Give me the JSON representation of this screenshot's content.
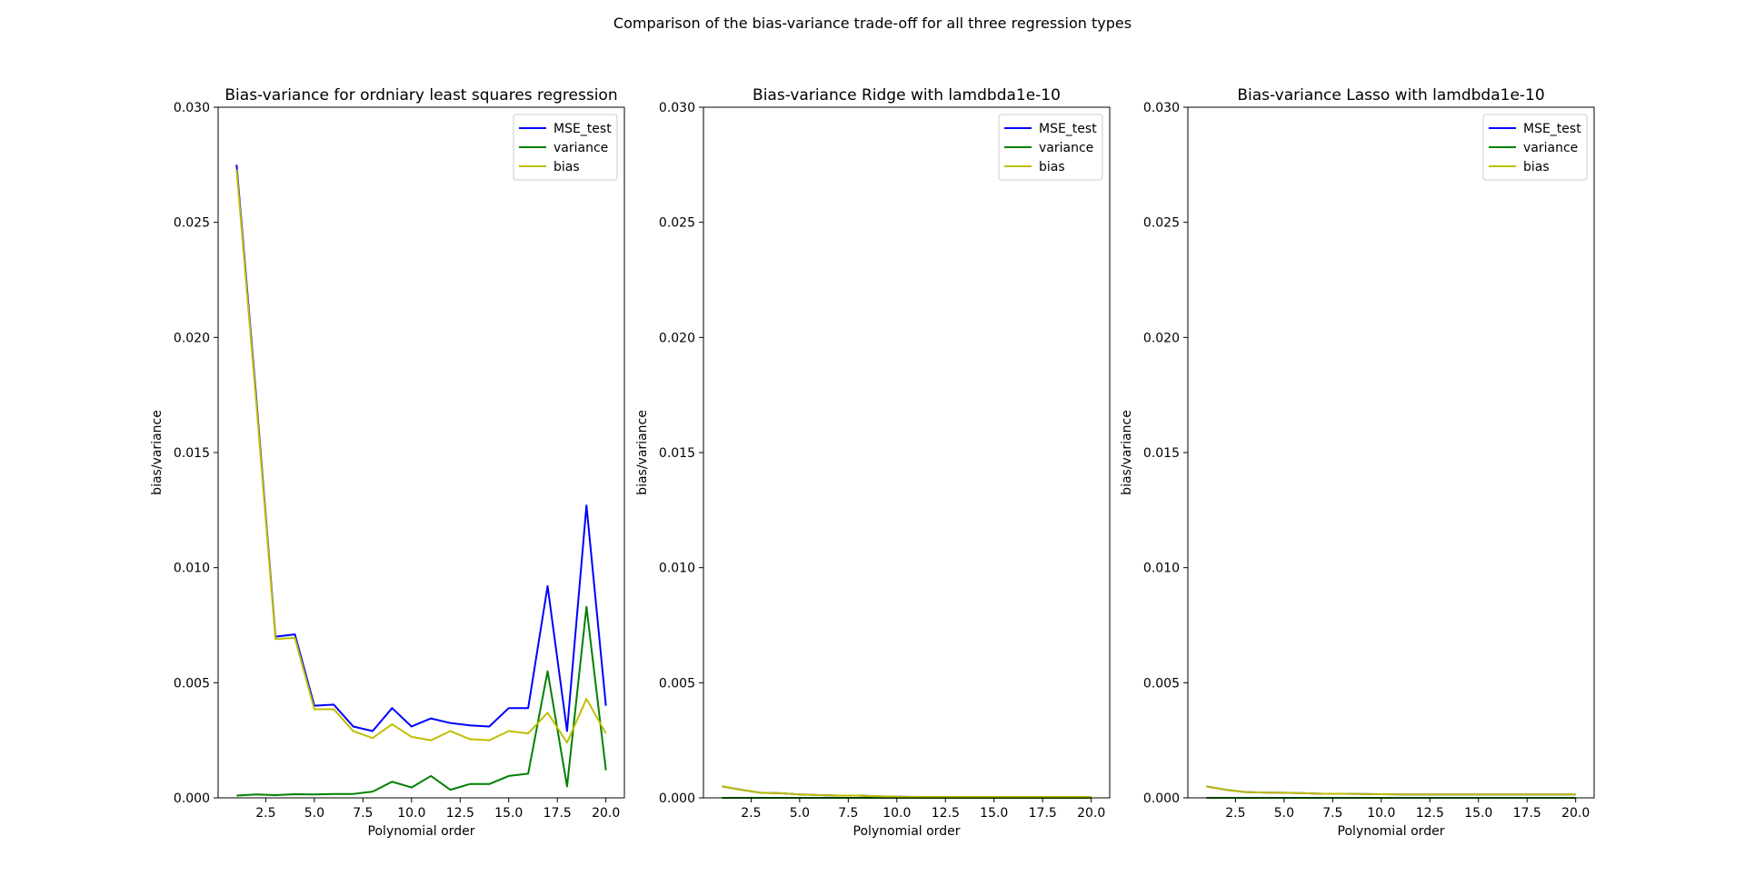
{
  "figure": {
    "suptitle": "Comparison of the bias-variance trade-off for all three regression types"
  },
  "colors": {
    "mse_test": "#0000ff",
    "variance": "#008000",
    "bias": "#bfbf00"
  },
  "chart_data": [
    {
      "type": "line",
      "title": "Bias-variance for ordniary least squares regression",
      "xlabel": "Polynomial order",
      "ylabel": "bias/variance",
      "xlim": [
        0.05,
        20.95
      ],
      "ylim": [
        0,
        0.03
      ],
      "xticks": [
        "2.5",
        "5.0",
        "7.5",
        "10.0",
        "12.5",
        "15.0",
        "17.5",
        "20.0"
      ],
      "yticks": [
        "0.000",
        "0.005",
        "0.010",
        "0.015",
        "0.020",
        "0.025",
        "0.030"
      ],
      "legend_position": "top-right",
      "grid": false,
      "x": [
        1,
        2,
        3,
        4,
        5,
        6,
        7,
        8,
        9,
        10,
        11,
        12,
        13,
        14,
        15,
        16,
        17,
        18,
        19,
        20
      ],
      "series": [
        {
          "name": "MSE_test",
          "color_key": "mse_test",
          "values": [
            0.0275,
            0.0175,
            0.007,
            0.0071,
            0.004,
            0.00405,
            0.0031,
            0.0029,
            0.0039,
            0.0031,
            0.00345,
            0.00325,
            0.00315,
            0.0031,
            0.0039,
            0.0039,
            0.0092,
            0.0029,
            0.0127,
            0.004
          ]
        },
        {
          "name": "variance",
          "color_key": "variance",
          "values": [
            0.0001,
            0.00015,
            0.00012,
            0.00016,
            0.00015,
            0.00017,
            0.00017,
            0.00027,
            0.0007,
            0.00045,
            0.00095,
            0.00035,
            0.0006,
            0.0006,
            0.00095,
            0.00105,
            0.0055,
            0.0005,
            0.0083,
            0.0012
          ]
        },
        {
          "name": "bias",
          "color_key": "bias",
          "values": [
            0.0273,
            0.0173,
            0.0069,
            0.00695,
            0.00385,
            0.00385,
            0.0029,
            0.0026,
            0.0032,
            0.00265,
            0.0025,
            0.0029,
            0.00255,
            0.0025,
            0.0029,
            0.0028,
            0.0037,
            0.0024,
            0.0043,
            0.0028
          ]
        }
      ]
    },
    {
      "type": "line",
      "title": "Bias-variance Ridge with lamdbda1e-10",
      "xlabel": "Polynomial order",
      "ylabel": "bias/variance",
      "xlim": [
        0.05,
        20.95
      ],
      "ylim": [
        0,
        0.03
      ],
      "xticks": [
        "2.5",
        "5.0",
        "7.5",
        "10.0",
        "12.5",
        "15.0",
        "17.5",
        "20.0"
      ],
      "yticks": [
        "0.000",
        "0.005",
        "0.010",
        "0.015",
        "0.020",
        "0.025",
        "0.030"
      ],
      "legend_position": "top-right",
      "grid": false,
      "x": [
        1,
        2,
        3,
        4,
        5,
        6,
        7,
        8,
        9,
        10,
        11,
        12,
        13,
        14,
        15,
        16,
        17,
        18,
        19,
        20
      ],
      "series": [
        {
          "name": "MSE_test",
          "color_key": "mse_test",
          "values": [
            0.0005,
            0.00035,
            0.00022,
            0.0002,
            0.00015,
            0.00012,
            0.0001,
            0.0001,
            7e-05,
            5e-05,
            4e-05,
            4e-05,
            4e-05,
            4e-05,
            4e-05,
            4e-05,
            4e-05,
            4e-05,
            4e-05,
            4e-05
          ]
        },
        {
          "name": "variance",
          "color_key": "variance",
          "values": [
            2e-06,
            2e-06,
            2e-06,
            2e-06,
            2e-06,
            2e-06,
            2e-06,
            2e-06,
            2e-06,
            2e-06,
            2e-06,
            2e-06,
            2e-06,
            2e-06,
            2e-06,
            2e-06,
            2e-06,
            2e-06,
            2e-06,
            2e-06
          ]
        },
        {
          "name": "bias",
          "color_key": "bias",
          "values": [
            0.0005,
            0.00035,
            0.00022,
            0.0002,
            0.00015,
            0.00012,
            0.0001,
            0.0001,
            7e-05,
            5e-05,
            4e-05,
            4e-05,
            4e-05,
            4e-05,
            4e-05,
            4e-05,
            4e-05,
            4e-05,
            4e-05,
            4e-05
          ]
        }
      ]
    },
    {
      "type": "line",
      "title": "Bias-variance Lasso with lamdbda1e-10",
      "xlabel": "Polynomial order",
      "ylabel": "bias/variance",
      "xlim": [
        0.05,
        20.95
      ],
      "ylim": [
        0,
        0.03
      ],
      "xticks": [
        "2.5",
        "5.0",
        "7.5",
        "10.0",
        "12.5",
        "15.0",
        "17.5",
        "20.0"
      ],
      "yticks": [
        "0.000",
        "0.005",
        "0.010",
        "0.015",
        "0.020",
        "0.025",
        "0.030"
      ],
      "legend_position": "top-right",
      "grid": false,
      "x": [
        1,
        2,
        3,
        4,
        5,
        6,
        7,
        8,
        9,
        10,
        11,
        12,
        13,
        14,
        15,
        16,
        17,
        18,
        19,
        20
      ],
      "series": [
        {
          "name": "MSE_test",
          "color_key": "mse_test",
          "values": [
            0.0005,
            0.00035,
            0.00025,
            0.00023,
            0.00022,
            0.0002,
            0.00018,
            0.00018,
            0.00017,
            0.00016,
            0.00015,
            0.00015,
            0.00015,
            0.00015,
            0.00015,
            0.00015,
            0.00015,
            0.00015,
            0.00015,
            0.00015
          ]
        },
        {
          "name": "variance",
          "color_key": "variance",
          "values": [
            2e-06,
            2e-06,
            2e-06,
            2e-06,
            2e-06,
            2e-06,
            2e-06,
            2e-06,
            2e-06,
            2e-06,
            2e-06,
            2e-06,
            2e-06,
            2e-06,
            2e-06,
            2e-06,
            2e-06,
            2e-06,
            2e-06,
            2e-06
          ]
        },
        {
          "name": "bias",
          "color_key": "bias",
          "values": [
            0.0005,
            0.00035,
            0.00025,
            0.00023,
            0.00022,
            0.0002,
            0.00018,
            0.00018,
            0.00017,
            0.00016,
            0.00015,
            0.00015,
            0.00015,
            0.00015,
            0.00015,
            0.00015,
            0.00015,
            0.00015,
            0.00015,
            0.00015
          ]
        }
      ]
    }
  ]
}
